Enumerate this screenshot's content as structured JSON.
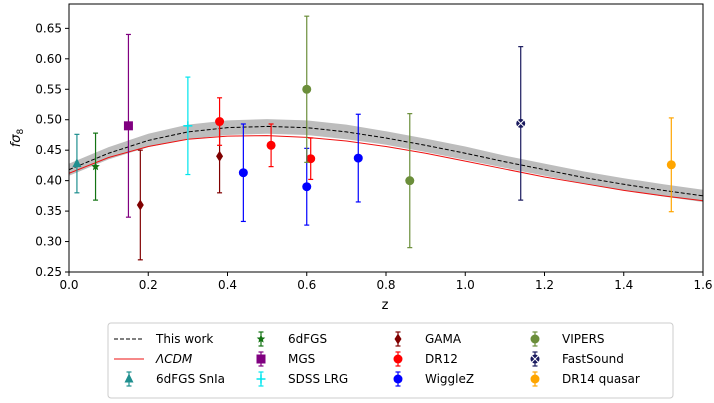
{
  "chart_data": {
    "type": "scatter",
    "xlabel": "z",
    "ylabel": "fσ8",
    "xlim": [
      0.0,
      1.6
    ],
    "ylim": [
      0.25,
      0.69
    ],
    "x_ticks": [
      "0.0",
      "0.2",
      "0.4",
      "0.6",
      "0.8",
      "1.0",
      "1.2",
      "1.4",
      "1.6"
    ],
    "x_tick_values": [
      0.0,
      0.2,
      0.4,
      0.6,
      0.8,
      1.0,
      1.2,
      1.4,
      1.6
    ],
    "y_ticks": [
      "0.25",
      "0.30",
      "0.35",
      "0.40",
      "0.45",
      "0.50",
      "0.55",
      "0.60",
      "0.65"
    ],
    "y_tick_values": [
      0.25,
      0.3,
      0.35,
      0.4,
      0.45,
      0.5,
      0.55,
      0.6,
      0.65
    ],
    "grid": false,
    "legend_position": "bottom-outside",
    "curves": [
      {
        "name": "This work",
        "style": "dashed",
        "color": "#000000",
        "band_color": "#bdbdbd",
        "x": [
          0.0,
          0.1,
          0.2,
          0.3,
          0.4,
          0.5,
          0.6,
          0.7,
          0.8,
          0.9,
          1.0,
          1.1,
          1.2,
          1.3,
          1.4,
          1.5,
          1.6
        ],
        "y": [
          0.418,
          0.445,
          0.466,
          0.48,
          0.487,
          0.489,
          0.487,
          0.48,
          0.47,
          0.458,
          0.445,
          0.431,
          0.418,
          0.405,
          0.394,
          0.384,
          0.375
        ],
        "band": [
          0.01,
          0.01,
          0.011,
          0.012,
          0.012,
          0.012,
          0.012,
          0.012,
          0.011,
          0.011,
          0.011,
          0.01,
          0.01,
          0.01,
          0.01,
          0.01,
          0.01
        ]
      },
      {
        "name": "ΛCDM",
        "style": "solid",
        "color": "#ee1111",
        "x": [
          0.0,
          0.1,
          0.2,
          0.3,
          0.4,
          0.5,
          0.6,
          0.7,
          0.8,
          0.9,
          1.0,
          1.1,
          1.2,
          1.3,
          1.4,
          1.5,
          1.6
        ],
        "y": [
          0.412,
          0.438,
          0.456,
          0.468,
          0.473,
          0.474,
          0.471,
          0.465,
          0.456,
          0.445,
          0.432,
          0.419,
          0.406,
          0.395,
          0.384,
          0.375,
          0.367
        ]
      }
    ],
    "series": [
      {
        "name": "6dFGS SnIa",
        "marker": "triangle",
        "color": "#1f8f8f",
        "points": [
          {
            "x": 0.02,
            "y": 0.428,
            "yerr": 0.048
          }
        ]
      },
      {
        "name": "6dFGS",
        "marker": "star",
        "color": "#137313",
        "points": [
          {
            "x": 0.067,
            "y": 0.423,
            "yerr": 0.055
          }
        ]
      },
      {
        "name": "MGS",
        "marker": "square",
        "color": "#800080",
        "points": [
          {
            "x": 0.15,
            "y": 0.49,
            "yerr": 0.15
          }
        ]
      },
      {
        "name": "SDSS LRG",
        "marker": "plus",
        "color": "#00e5ee",
        "points": [
          {
            "x": 0.3,
            "y": 0.49,
            "yerr": 0.08
          }
        ]
      },
      {
        "name": "GAMA",
        "marker": "diamond",
        "color": "#800000",
        "points": [
          {
            "x": 0.18,
            "y": 0.36,
            "yerr": 0.09
          },
          {
            "x": 0.38,
            "y": 0.44,
            "yerr": 0.06
          }
        ]
      },
      {
        "name": "DR12",
        "marker": "circle",
        "color": "#ff0000",
        "points": [
          {
            "x": 0.38,
            "y": 0.497,
            "yerr": 0.039
          },
          {
            "x": 0.51,
            "y": 0.458,
            "yerr": 0.035
          },
          {
            "x": 0.61,
            "y": 0.436,
            "yerr": 0.034
          }
        ]
      },
      {
        "name": "WiggleZ",
        "marker": "circle",
        "color": "#0000ff",
        "points": [
          {
            "x": 0.44,
            "y": 0.413,
            "yerr": 0.08
          },
          {
            "x": 0.6,
            "y": 0.39,
            "yerr": 0.063
          },
          {
            "x": 0.73,
            "y": 0.437,
            "yerr": 0.072
          }
        ]
      },
      {
        "name": "VIPERS",
        "marker": "circle",
        "color": "#6b8e3a",
        "points": [
          {
            "x": 0.6,
            "y": 0.55,
            "yerr": 0.12
          },
          {
            "x": 0.86,
            "y": 0.4,
            "yerr": 0.11
          }
        ]
      },
      {
        "name": "FastSound",
        "marker": "xcircle",
        "color": "#1a1a5e",
        "points": [
          {
            "x": 1.14,
            "y": 0.494,
            "yerr": 0.126
          }
        ]
      },
      {
        "name": "DR14 quasar",
        "marker": "circle",
        "color": "#ffa500",
        "points": [
          {
            "x": 1.52,
            "y": 0.426,
            "yerr": 0.077
          }
        ]
      }
    ],
    "legend": [
      [
        "This work",
        "ΛCDM",
        "6dFGS SnIa"
      ],
      [
        "6dFGS",
        "MGS",
        "SDSS LRG"
      ],
      [
        "GAMA",
        "DR12",
        "WiggleZ"
      ],
      [
        "VIPERS",
        "FastSound",
        "DR14 quasar"
      ]
    ]
  }
}
